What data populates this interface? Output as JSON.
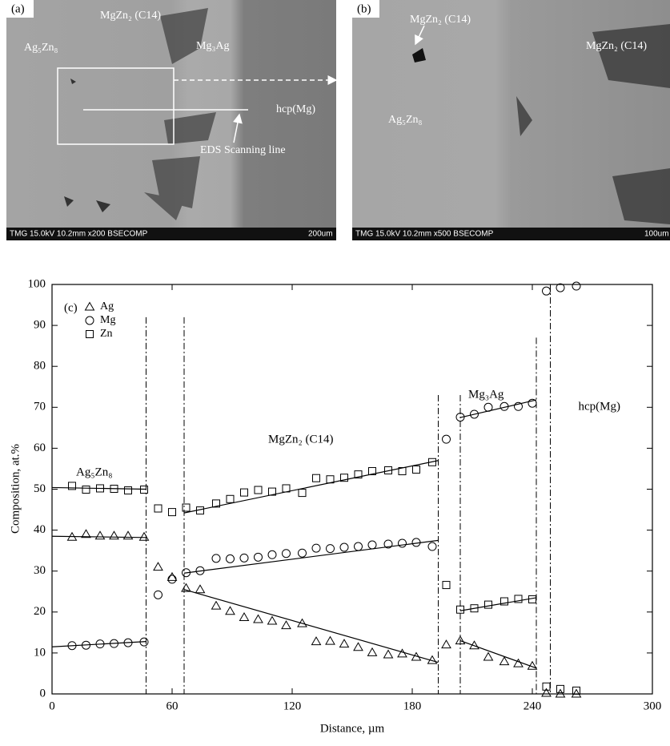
{
  "panels": {
    "a": {
      "labels": [
        "(a)",
        "MgZn₂ (C14)",
        "Ag₅Zn₈",
        "Mg₃Ag",
        "hcp(Mg)",
        "EDS Scanning line",
        "TMG 15.0kV 10.2mm x200 BSECOMP",
        "200um"
      ]
    },
    "b": {
      "labels": [
        "(b)",
        "MgZn₂ (C14)",
        "MgZn₂ (C14)",
        "Ag₅Zn₈",
        "TMG 15.0kV 10.2mm x500 BSECOMP",
        "100um"
      ]
    }
  },
  "chart_data": {
    "type": "scatter",
    "panel_label": "(c)",
    "x_label": "Distance, µm",
    "y_label": "Composition, at.%",
    "x": [
      10,
      17,
      24,
      31,
      38,
      46,
      53,
      60,
      67,
      74,
      82,
      89,
      96,
      103,
      110,
      117,
      125,
      132,
      139,
      146,
      153,
      160,
      168,
      175,
      182,
      190,
      197,
      204,
      211,
      218,
      226,
      233,
      240,
      247,
      254,
      262
    ],
    "series": [
      {
        "name": "Ag",
        "marker": "triangle",
        "color": "#000000",
        "values": [
          38.3,
          39,
          38.6,
          38.6,
          38.6,
          38.3,
          31,
          28.5,
          25.8,
          25.5,
          21.5,
          20.2,
          18.7,
          18.2,
          17.8,
          16.7,
          17.2,
          12.8,
          12.9,
          12.2,
          11.4,
          10.1,
          9.6,
          9.8,
          9,
          8.2,
          12,
          13,
          11.8,
          9,
          7.9,
          7.4,
          6.8,
          0.2,
          0,
          0
        ],
        "fits": [
          {
            "x": [
              0,
              47
            ],
            "y": [
              38.5,
              38.2
            ]
          },
          {
            "x": [
              66,
              193
            ],
            "y": [
              25.5,
              7.7
            ]
          },
          {
            "x": [
              204,
              242
            ],
            "y": [
              13,
              6.3
            ]
          }
        ]
      },
      {
        "name": "Mg",
        "marker": "circle",
        "color": "#000000",
        "values": [
          11.8,
          11.9,
          12.2,
          12.3,
          12.5,
          12.7,
          24.2,
          28,
          29.6,
          30.1,
          33.1,
          33,
          33.2,
          33.4,
          34,
          34.3,
          34.4,
          35.6,
          35.5,
          35.8,
          36,
          36.4,
          36.6,
          36.8,
          37,
          36,
          62.2,
          67.6,
          68.3,
          70,
          70.2,
          70.2,
          71,
          98.4,
          99.2,
          99.6
        ],
        "fits": [
          {
            "x": [
              0,
              47
            ],
            "y": [
              11.5,
              12.8
            ]
          },
          {
            "x": [
              66,
              193
            ],
            "y": [
              29.5,
              37.5
            ]
          },
          {
            "x": [
              204,
              242
            ],
            "y": [
              67.5,
              71.8
            ]
          }
        ]
      },
      {
        "name": "Zn",
        "marker": "square",
        "color": "#000000",
        "values": [
          50.8,
          49.9,
          50.2,
          50.1,
          49.7,
          49.9,
          45.3,
          44.4,
          45.5,
          44.8,
          46.5,
          47.6,
          49.2,
          49.8,
          49.4,
          50.2,
          49.1,
          52.7,
          52.4,
          52.8,
          53.6,
          54.4,
          54.6,
          54.4,
          54.8,
          56.6,
          26.6,
          20.6,
          20.9,
          21.8,
          22.6,
          23.2,
          23.1,
          1.8,
          1.2,
          0.8
        ],
        "fits": [
          {
            "x": [
              0,
              47
            ],
            "y": [
              50.4,
              50
            ]
          },
          {
            "x": [
              66,
              193
            ],
            "y": [
              44.2,
              57
            ]
          },
          {
            "x": [
              204,
              242
            ],
            "y": [
              20.3,
              23.5
            ]
          }
        ]
      }
    ],
    "boundaries": [
      {
        "x": 47,
        "top": 92
      },
      {
        "x": 66,
        "top": 92
      },
      {
        "x": 193,
        "top": 73
      },
      {
        "x": 204,
        "top": 73
      },
      {
        "x": 242,
        "top": 87
      },
      {
        "x": 249,
        "top": 100
      }
    ],
    "annotations": [
      "Ag₅Zn₈",
      "MgZn₂ (C14)",
      "Mg₃Ag",
      "hcp(Mg)"
    ],
    "xlim": [
      0,
      300
    ],
    "xticks": [
      0,
      60,
      120,
      180,
      240,
      300
    ],
    "ylim": [
      0,
      100
    ],
    "yticks": [
      0,
      10,
      20,
      30,
      40,
      50,
      60,
      70,
      80,
      90,
      100
    ]
  }
}
